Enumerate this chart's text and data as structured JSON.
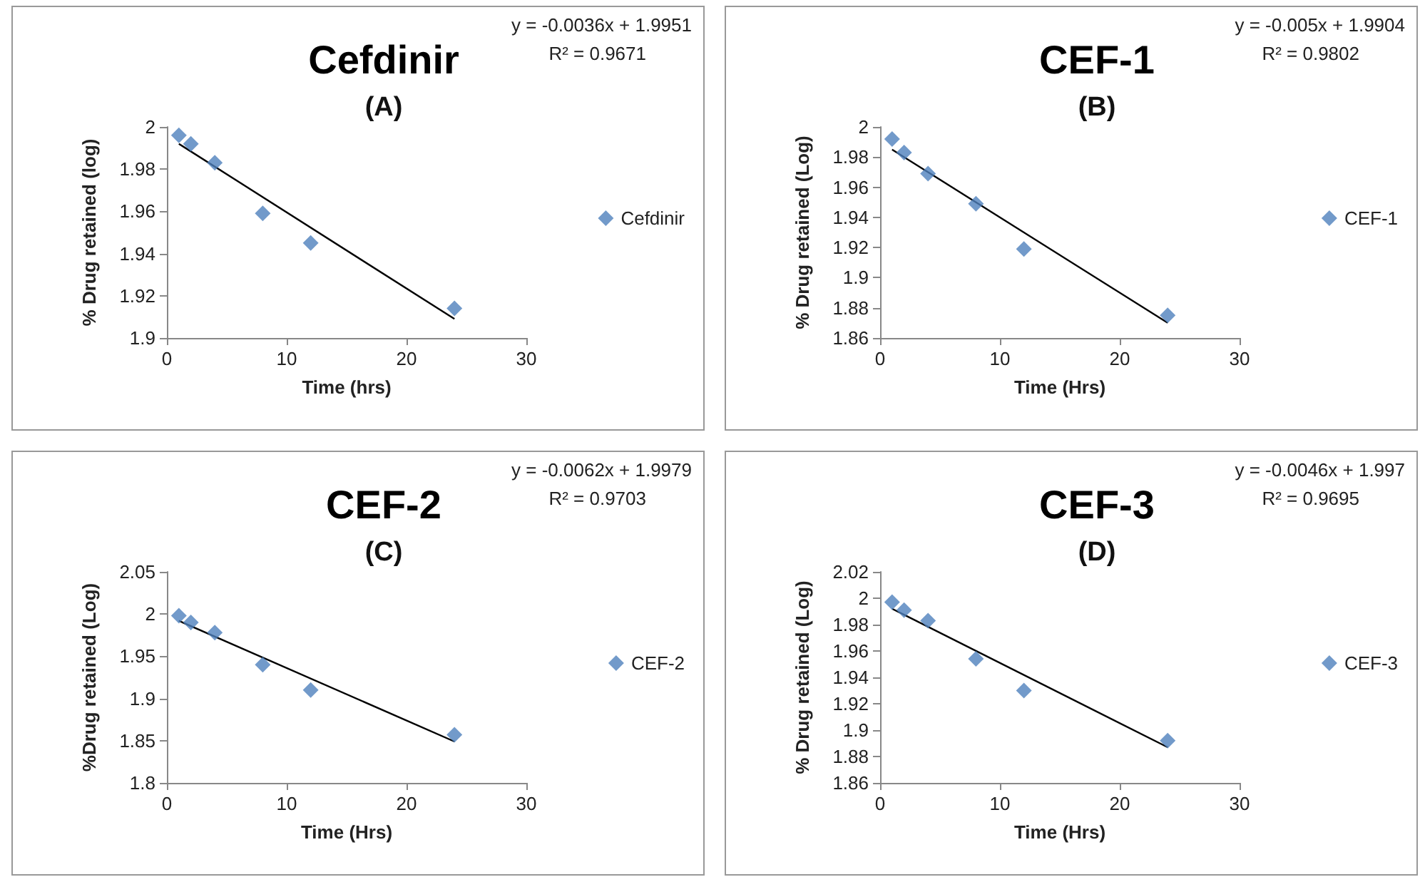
{
  "chart_data": [
    {
      "type": "scatter",
      "title": "Cefdinir",
      "subtitle": "(A)",
      "xlabel": "Time (hrs)",
      "ylabel": "% Drug retained (log)",
      "annotations": [
        "y = -0.0036x + 1.9951",
        "R² = 0.9671"
      ],
      "legend": "right",
      "grid": false,
      "xlim": [
        0,
        30
      ],
      "xticks": [
        0,
        10,
        20,
        30
      ],
      "ylim": [
        1.9,
        2
      ],
      "yticks": [
        1.9,
        1.92,
        1.94,
        1.96,
        1.98,
        2
      ],
      "series": [
        {
          "name": "Cefdinir",
          "color": "#4f81bd",
          "marker": "diamond",
          "x": [
            1,
            2,
            4,
            8,
            12,
            24
          ],
          "values": [
            1.996,
            1.992,
            1.983,
            1.959,
            1.945,
            1.914
          ]
        },
        {
          "type": "line",
          "color": "#000000",
          "marker": "none",
          "x": [
            1,
            24
          ],
          "values": [
            1.992,
            1.909
          ]
        }
      ]
    },
    {
      "type": "scatter",
      "title": "CEF-1",
      "subtitle": "(B)",
      "xlabel": "Time (Hrs)",
      "ylabel": "% Drug retained (Log)",
      "annotations": [
        "y = -0.005x + 1.9904",
        "R² = 0.9802"
      ],
      "legend": "right",
      "grid": false,
      "xlim": [
        0,
        30
      ],
      "xticks": [
        0,
        10,
        20,
        30
      ],
      "ylim": [
        1.86,
        2
      ],
      "yticks": [
        1.86,
        1.88,
        1.9,
        1.92,
        1.94,
        1.96,
        1.98,
        2
      ],
      "series": [
        {
          "name": "CEF-1",
          "color": "#4f81bd",
          "marker": "diamond",
          "x": [
            1,
            2,
            4,
            8,
            12,
            24
          ],
          "values": [
            1.992,
            1.983,
            1.969,
            1.949,
            1.919,
            1.875
          ]
        },
        {
          "type": "line",
          "color": "#000000",
          "marker": "none",
          "x": [
            1,
            24
          ],
          "values": [
            1.985,
            1.87
          ]
        }
      ]
    },
    {
      "type": "scatter",
      "title": "CEF-2",
      "subtitle": "(C)",
      "xlabel": "Time (Hrs)",
      "ylabel": "%Drug retained (Log)",
      "annotations": [
        "y = -0.0062x + 1.9979",
        "R² = 0.9703"
      ],
      "legend": "right",
      "grid": false,
      "xlim": [
        0,
        30
      ],
      "xticks": [
        0,
        10,
        20,
        30
      ],
      "ylim": [
        1.8,
        2.05
      ],
      "yticks": [
        1.8,
        1.85,
        1.9,
        1.95,
        2,
        2.05
      ],
      "series": [
        {
          "name": "CEF-2",
          "color": "#4f81bd",
          "marker": "diamond",
          "x": [
            1,
            2,
            4,
            8,
            12,
            24
          ],
          "values": [
            1.998,
            1.99,
            1.978,
            1.94,
            1.91,
            1.857
          ]
        },
        {
          "type": "line",
          "color": "#000000",
          "marker": "none",
          "x": [
            1,
            24
          ],
          "values": [
            1.992,
            1.849
          ]
        }
      ]
    },
    {
      "type": "scatter",
      "title": "CEF-3",
      "subtitle": "(D)",
      "xlabel": "Time (Hrs)",
      "ylabel": "% Drug retained (Log)",
      "annotations": [
        "y = -0.0046x + 1.997",
        "R² = 0.9695"
      ],
      "legend": "right",
      "grid": false,
      "xlim": [
        0,
        30
      ],
      "xticks": [
        0,
        10,
        20,
        30
      ],
      "ylim": [
        1.86,
        2.02
      ],
      "yticks": [
        1.86,
        1.88,
        1.9,
        1.92,
        1.94,
        1.96,
        1.98,
        2,
        2.02
      ],
      "series": [
        {
          "name": "CEF-3",
          "color": "#4f81bd",
          "marker": "diamond",
          "x": [
            1,
            2,
            4,
            8,
            12,
            24
          ],
          "values": [
            1.997,
            1.991,
            1.983,
            1.954,
            1.93,
            1.892
          ]
        },
        {
          "type": "line",
          "color": "#000000",
          "marker": "none",
          "x": [
            1,
            24
          ],
          "values": [
            1.992,
            1.887
          ]
        }
      ]
    }
  ]
}
